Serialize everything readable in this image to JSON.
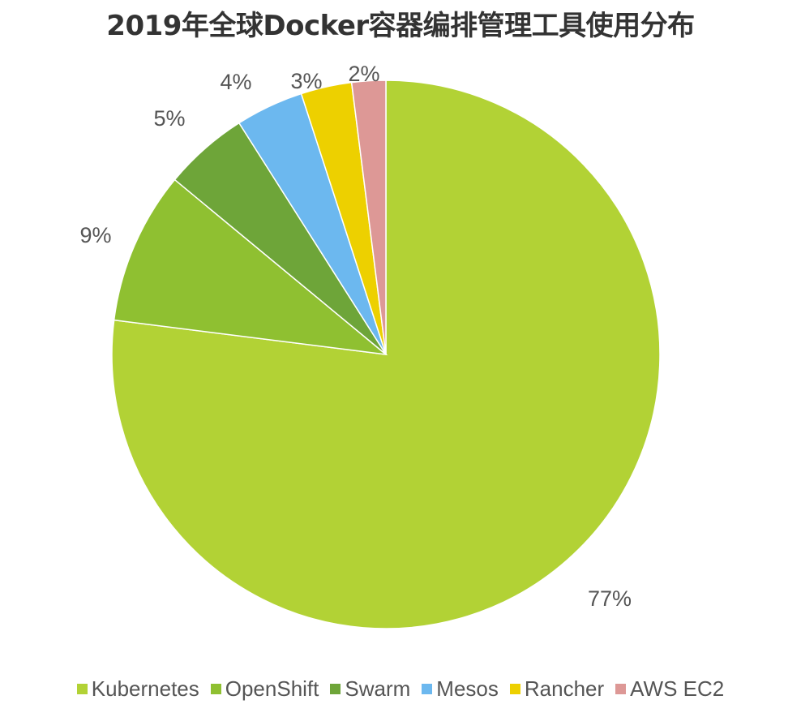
{
  "chart_data": {
    "type": "pie",
    "title": "2019年全球Docker容器编排管理工具使用分布",
    "categories": [
      "Kubernetes",
      "OpenShift",
      "Swarm",
      "Mesos",
      "Rancher",
      "AWS EC2"
    ],
    "values": [
      77,
      9,
      5,
      4,
      3,
      2
    ],
    "data_labels": [
      "77%",
      "9%",
      "5%",
      "4%",
      "3%",
      "2%"
    ],
    "colors": [
      "#b2d235",
      "#8fc031",
      "#6ea539",
      "#6cb8ef",
      "#edd000",
      "#dd9896"
    ],
    "start_angle": "12 o'clock",
    "direction": "clockwise",
    "legend_position": "bottom"
  }
}
